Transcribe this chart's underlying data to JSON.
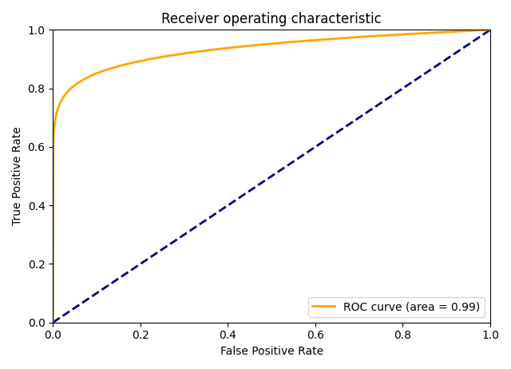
{
  "title": "Receiver operating characteristic",
  "xlabel": "False Positive Rate",
  "ylabel": "True Positive Rate",
  "roc_area": 0.99,
  "legend_label": "ROC curve (area = 0.99)",
  "roc_color": "#FFA500",
  "diagonal_color": "#00008B",
  "roc_linewidth": 2.0,
  "diagonal_linewidth": 2.0,
  "xlim": [
    0.0,
    1.0
  ],
  "ylim": [
    0.0,
    1.0
  ],
  "figsize": [
    6.4,
    4.62
  ],
  "dpi": 100,
  "curve_alpha": 0.15,
  "curve_beta": 0.15
}
